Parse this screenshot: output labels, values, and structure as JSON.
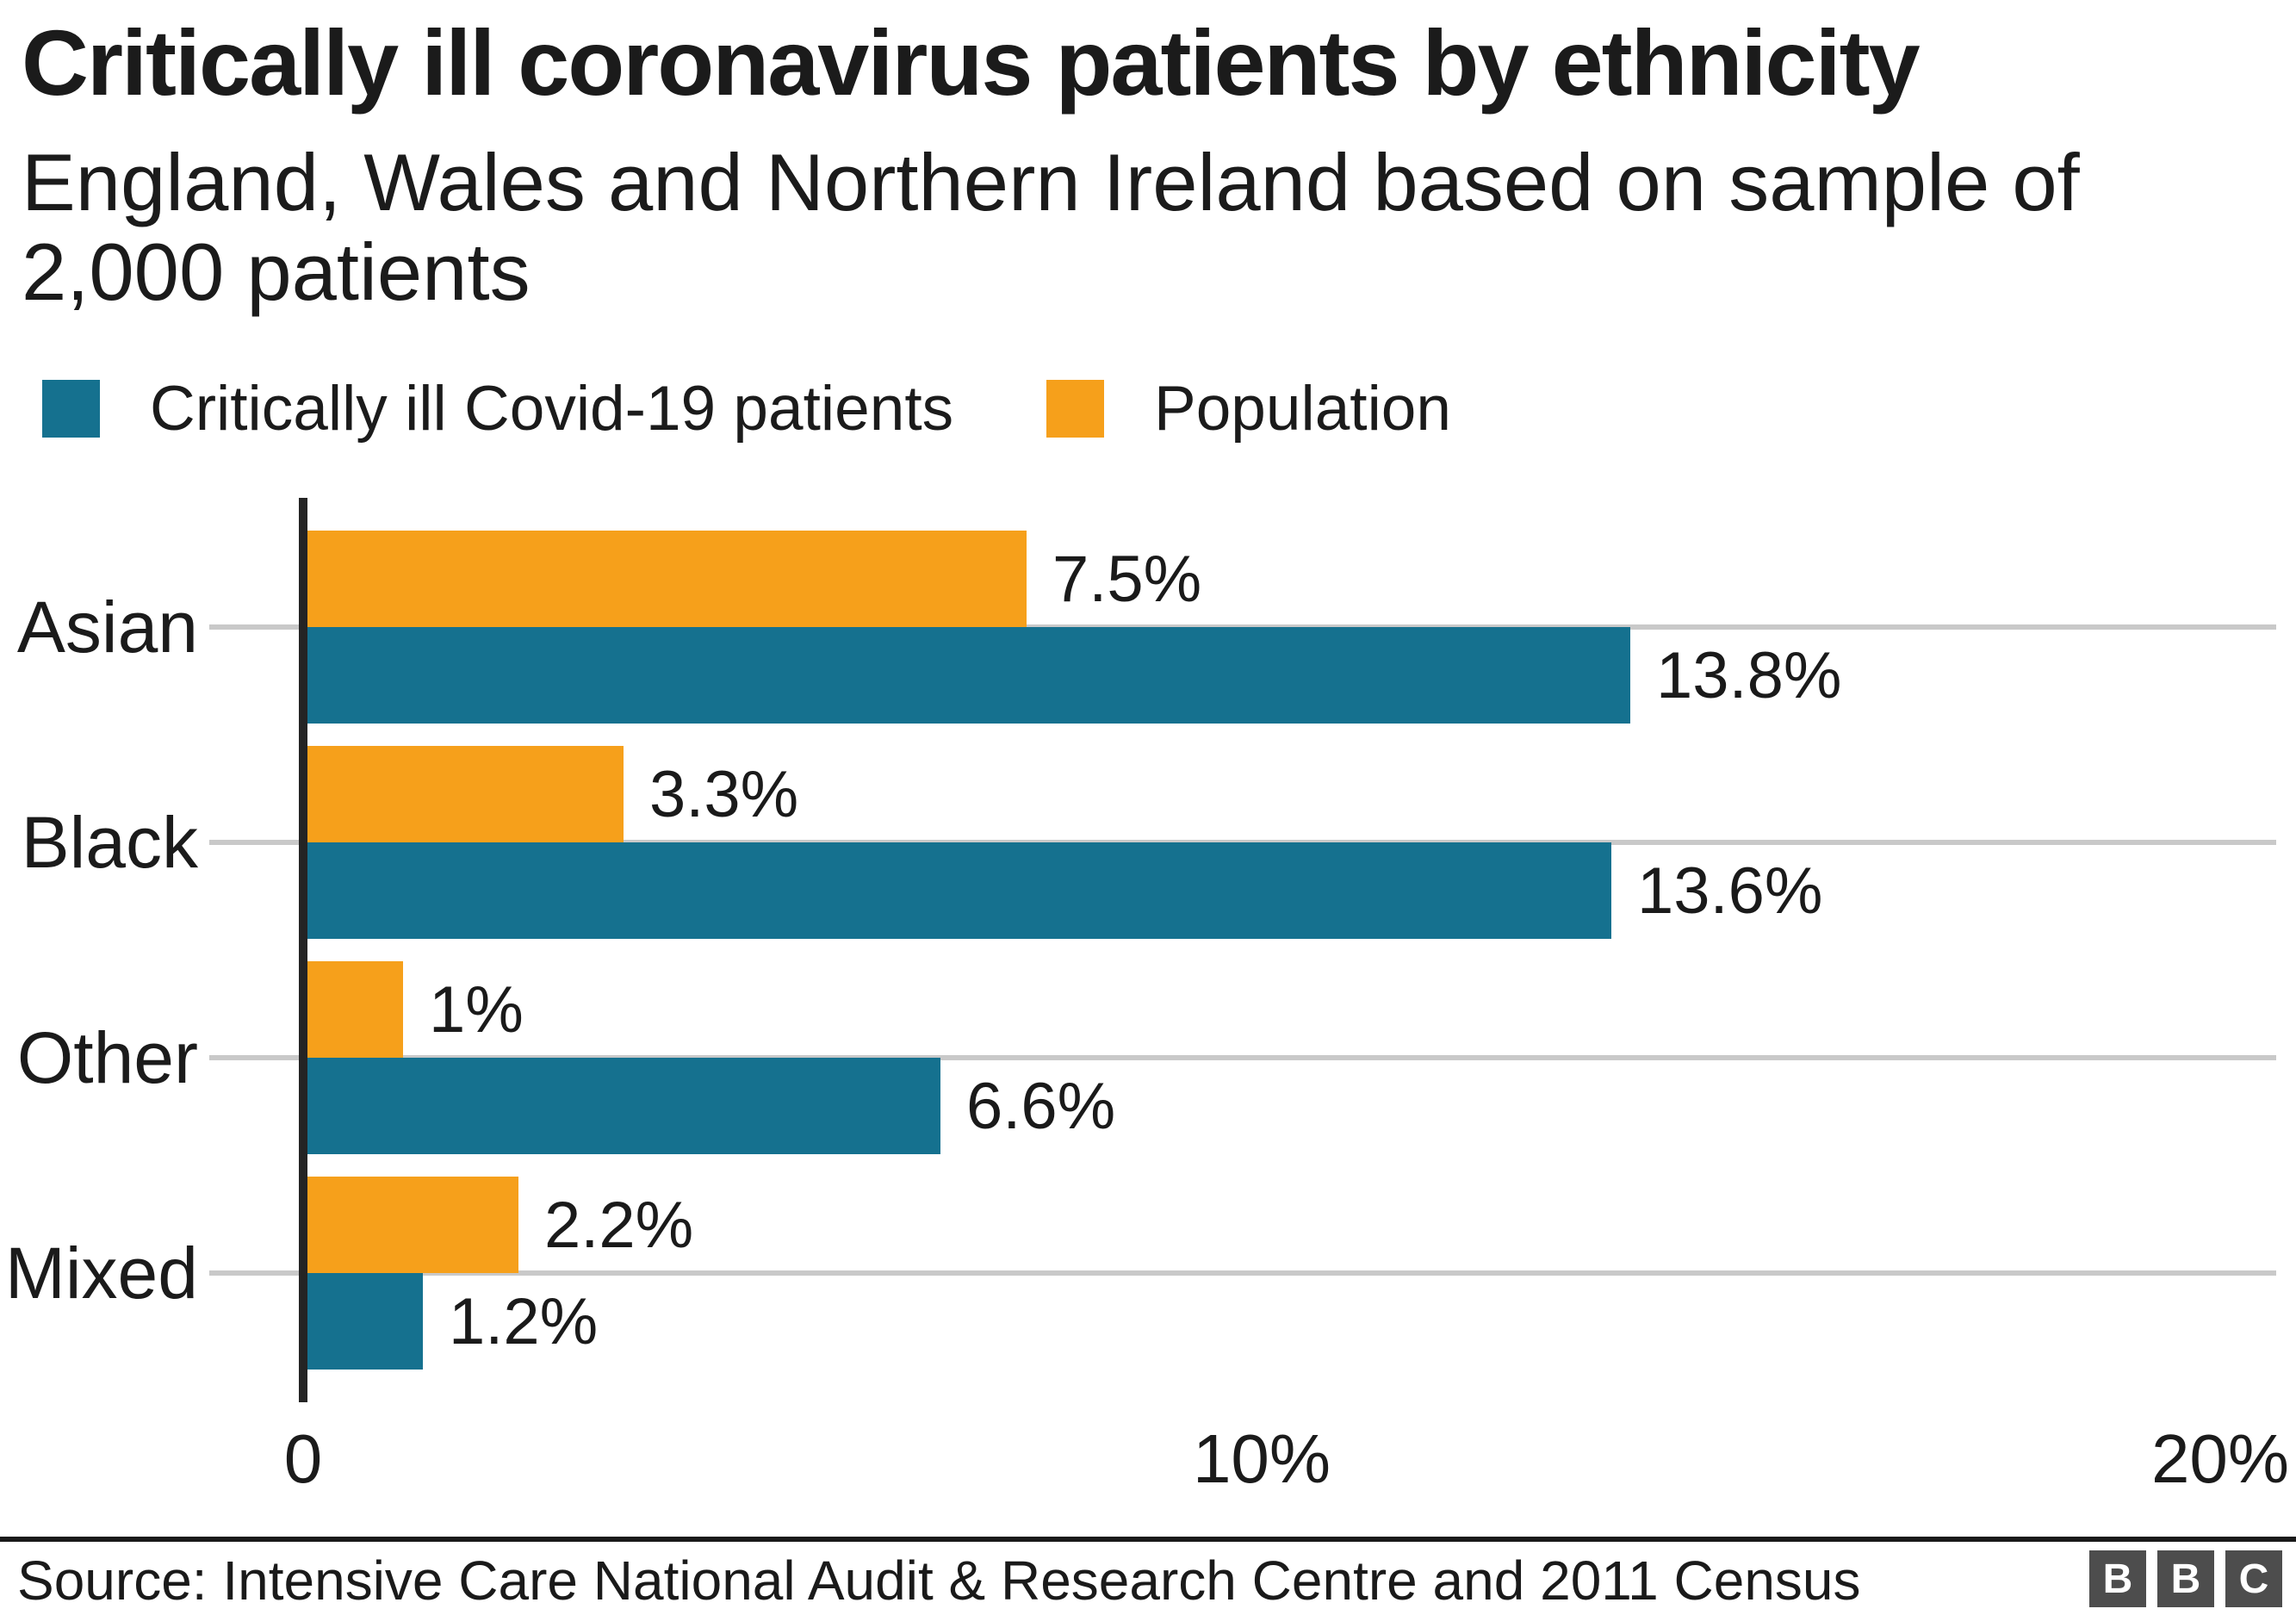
{
  "header": {
    "title": "Critically ill coronavirus patients by ethnicity",
    "subtitle": "England, Wales and Northern Ireland based on sample of 2,000 patients"
  },
  "legend": {
    "items": [
      {
        "label": "Critically ill Covid-19 patients",
        "color": "#15718F"
      },
      {
        "label": "Population",
        "color": "#F6A01B"
      }
    ]
  },
  "chart_data": {
    "type": "bar",
    "orientation": "horizontal",
    "title": "Critically ill coronavirus patients by ethnicity",
    "subtitle": "England, Wales and Northern Ireland based on sample of 2,000 patients",
    "categories": [
      "Asian",
      "Black",
      "Other",
      "Mixed"
    ],
    "series": [
      {
        "name": "Population",
        "color": "#F6A01B",
        "row": 0,
        "values": [
          7.5,
          3.3,
          1,
          2.2
        ],
        "labels": [
          "7.5%",
          "3.3%",
          "1%",
          "2.2%"
        ]
      },
      {
        "name": "Critically ill Covid-19 patients",
        "color": "#15718F",
        "row": 1,
        "values": [
          13.8,
          13.6,
          6.6,
          1.2
        ],
        "labels": [
          "13.8%",
          "13.6%",
          "6.6%",
          "1.2%"
        ]
      }
    ],
    "x_axis": {
      "max": 20.8,
      "ticks": [
        {
          "value": 0,
          "label": "0"
        },
        {
          "value": 10,
          "label": "10%"
        },
        {
          "value": 20,
          "label": "20%"
        }
      ]
    },
    "grid": true,
    "legend_position": "top",
    "colors": {
      "grid": "#c9c9c9",
      "axis": "#242424",
      "text": "#1b1b1b"
    }
  },
  "footer": {
    "source": "Source: Intensive Care National Audit & Research Centre and 2011 Census",
    "logo": [
      "B",
      "B",
      "C"
    ]
  }
}
